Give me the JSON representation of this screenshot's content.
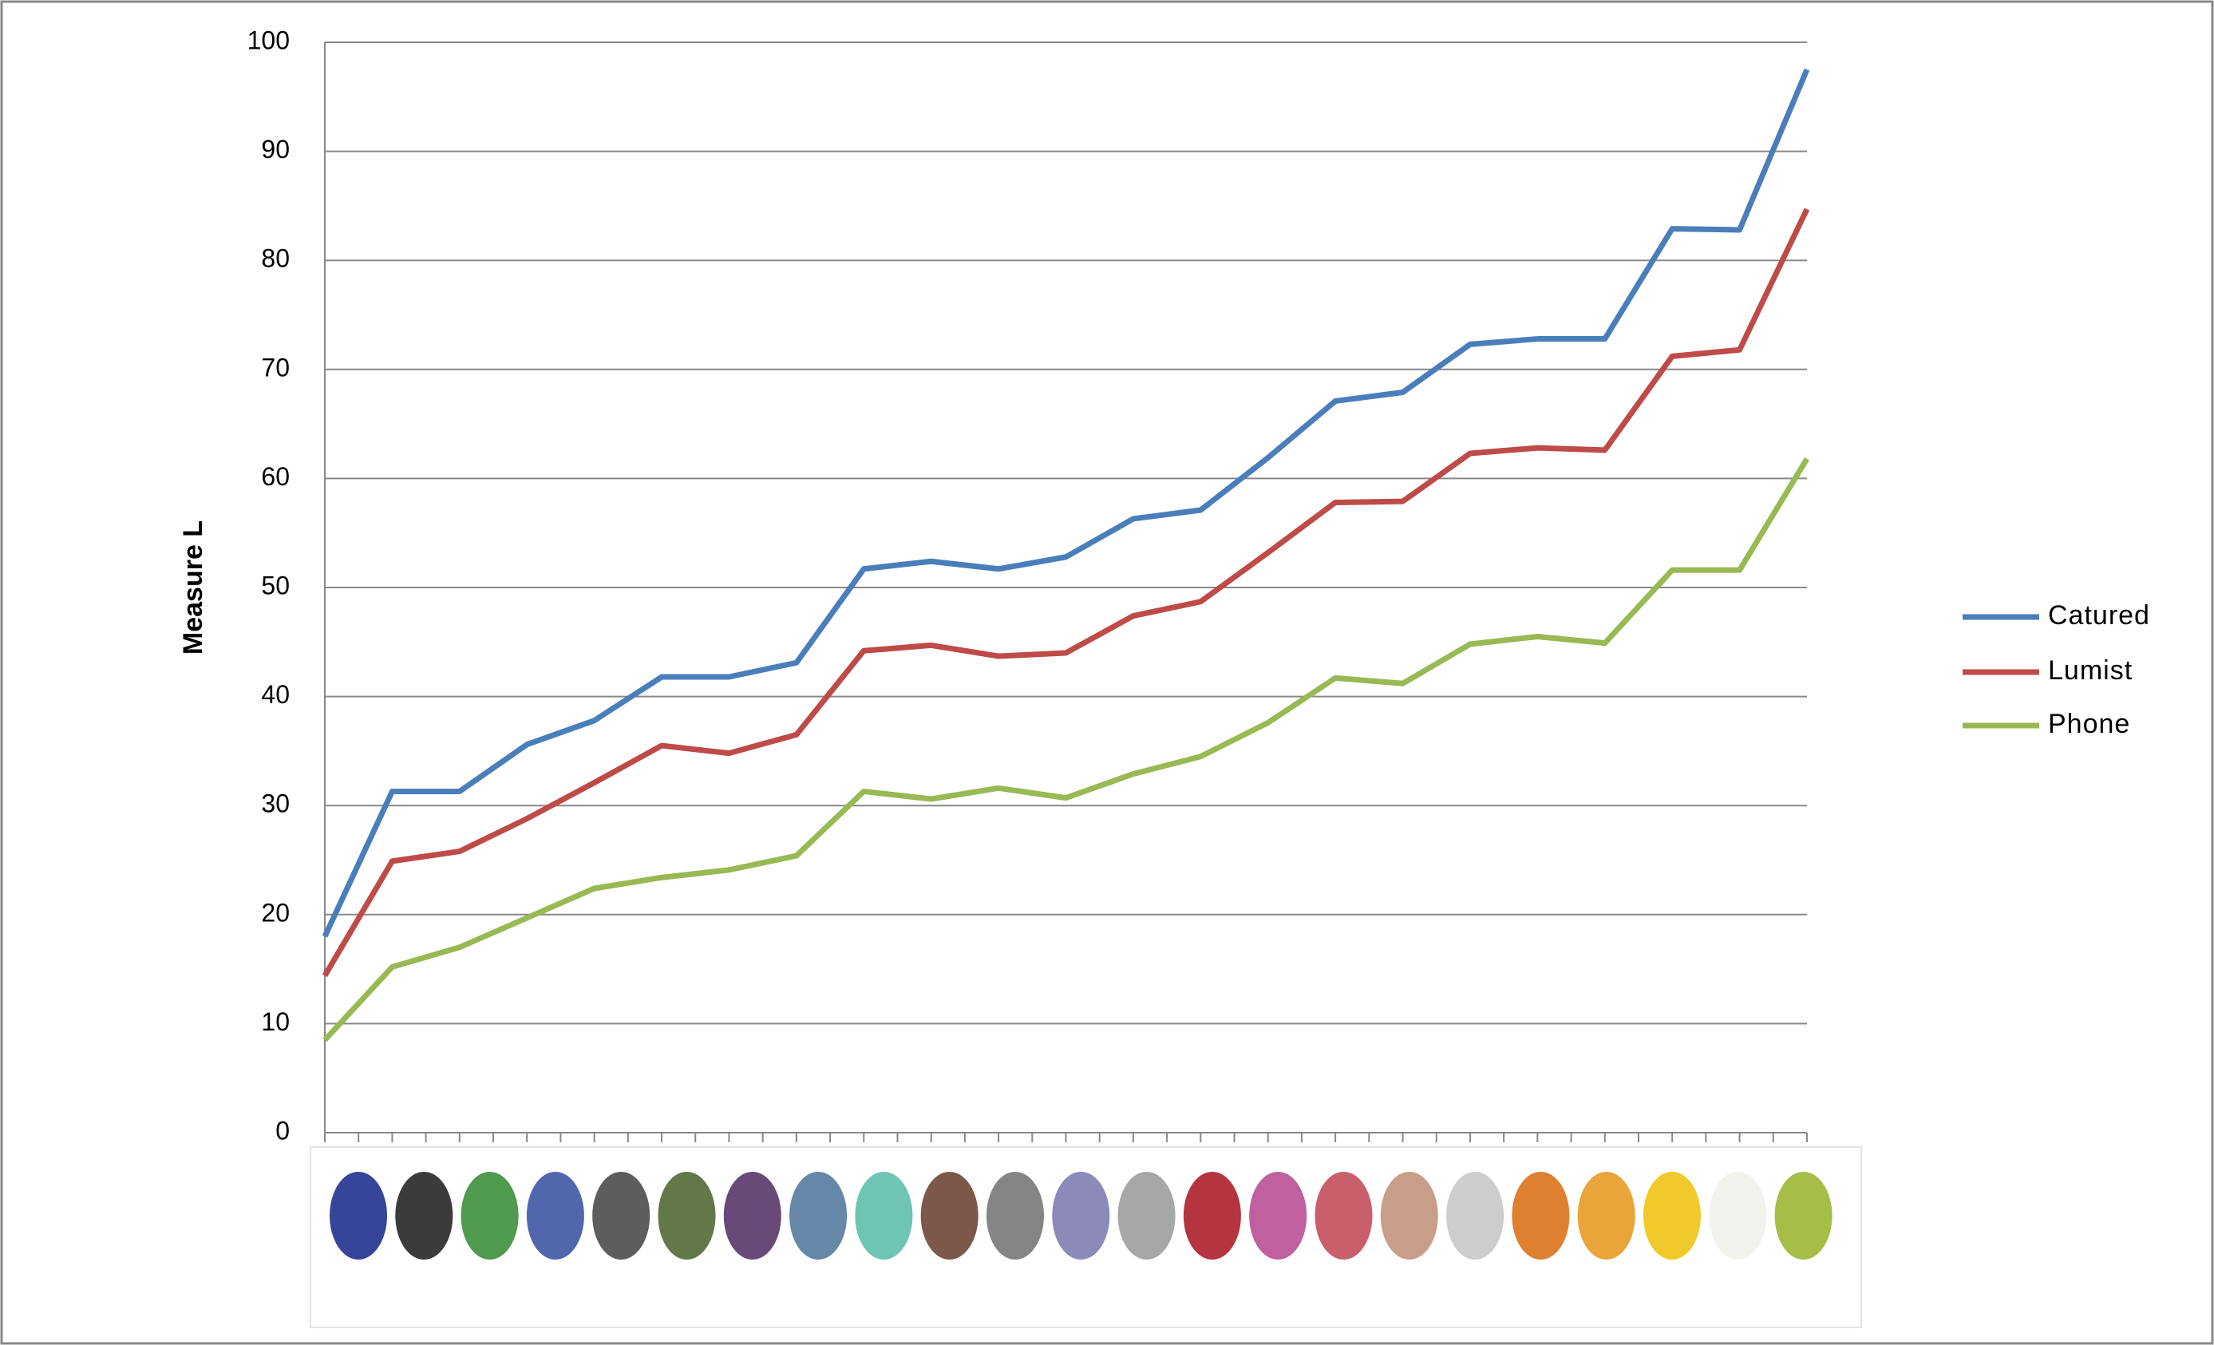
{
  "chart_data": {
    "type": "line",
    "ylabel": "Measure L",
    "categories": [
      null,
      null,
      null,
      null,
      null,
      null,
      null,
      null,
      null,
      null,
      null,
      null,
      null,
      null,
      null,
      null,
      null,
      null,
      null,
      null,
      null,
      null,
      null
    ],
    "series": [
      {
        "name": "Catured",
        "color": "#4a7ebb",
        "values": [
          18.0,
          31.3,
          31.3,
          35.6,
          37.8,
          41.8,
          41.8,
          43.1,
          51.7,
          52.4,
          51.7,
          52.8,
          56.3,
          57.1,
          61.9,
          67.1,
          67.9,
          72.3,
          72.8,
          72.8,
          82.9,
          82.8,
          97.5
        ]
      },
      {
        "name": "Lumist",
        "color": "#be4b48",
        "values": [
          14.4,
          24.9,
          25.8,
          28.8,
          32.1,
          35.5,
          34.8,
          36.5,
          44.2,
          44.7,
          43.7,
          44.0,
          47.4,
          48.7,
          53.2,
          57.8,
          57.9,
          62.3,
          62.8,
          62.6,
          71.2,
          71.8,
          84.7
        ]
      },
      {
        "name": "Phone",
        "color": "#98b954",
        "values": [
          8.5,
          15.2,
          17.0,
          19.7,
          22.4,
          23.4,
          24.1,
          25.4,
          31.3,
          30.6,
          31.6,
          30.7,
          32.9,
          34.5,
          37.6,
          41.7,
          41.2,
          44.8,
          45.5,
          44.9,
          51.6,
          51.6,
          61.8
        ]
      }
    ],
    "ylim": [
      0,
      100
    ],
    "yticks": [
      0,
      10,
      20,
      30,
      40,
      50,
      60,
      70,
      80,
      90,
      100
    ],
    "grid": true,
    "legend": "right"
  }
}
